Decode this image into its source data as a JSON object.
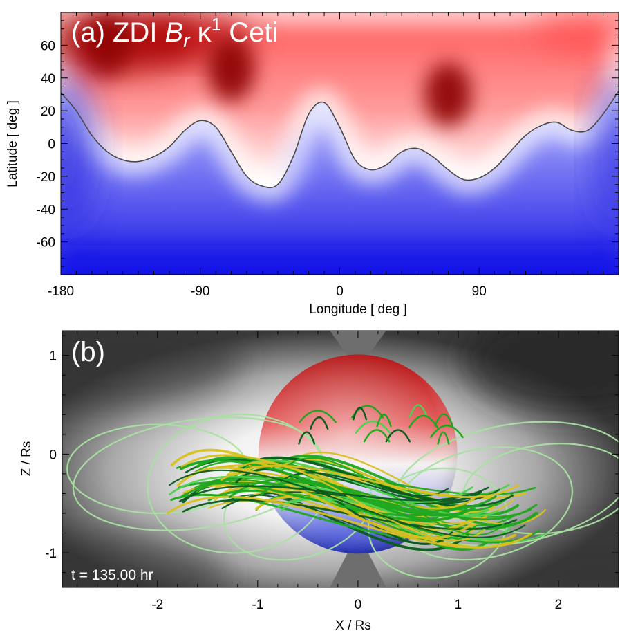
{
  "chart_data": [
    {
      "type": "heatmap",
      "panel": "(a)",
      "title_parts": {
        "prefix": "(a) ZDI ",
        "symbol": "B",
        "subscript": "r",
        "star": " κ",
        "superscript": "1",
        "suffix": " Ceti"
      },
      "xlabel": "Longitude  [ deg ]",
      "ylabel": "Latitude  [ deg ]",
      "xlim": [
        -180,
        180
      ],
      "ylim": [
        -80,
        80
      ],
      "xticks": [
        -180,
        -90,
        0,
        90
      ],
      "yticks": [
        60,
        40,
        20,
        0,
        -20,
        -40,
        -60
      ],
      "colormap": {
        "positive": "#b00000",
        "zero": "#ffffff",
        "negative": "#1010e0"
      },
      "contour_zero": {
        "lon": [
          -180,
          -170,
          -160,
          -150,
          -140,
          -130,
          -120,
          -110,
          -100,
          -90,
          -80,
          -70,
          -60,
          -50,
          -40,
          -30,
          -20,
          -10,
          0,
          10,
          20,
          30,
          40,
          50,
          60,
          70,
          80,
          90,
          100,
          110,
          120,
          130,
          140,
          150,
          160,
          170,
          180
        ],
        "lat": [
          31,
          20,
          5,
          -5,
          -10,
          -11,
          -8,
          -2,
          8,
          14,
          10,
          -5,
          -20,
          -26,
          -25,
          -8,
          18,
          25,
          10,
          -10,
          -16,
          -13,
          -5,
          -3,
          -8,
          -16,
          -22,
          -21,
          -15,
          -5,
          5,
          11,
          13,
          8,
          8,
          18,
          32
        ]
      },
      "field_features": [
        {
          "lon": -70,
          "lat": 45,
          "sign": "positive",
          "strength": 1.0
        },
        {
          "lon": 70,
          "lat": 30,
          "sign": "positive",
          "strength": 1.0
        },
        {
          "lon": -150,
          "lat": 60,
          "sign": "positive",
          "strength": 0.85
        },
        {
          "lon": -25,
          "lat": -10,
          "sign": "negative",
          "strength": 0.2
        }
      ]
    },
    {
      "type": "scatter",
      "panel": "(b)",
      "title": "(b)",
      "xlabel": "X / Rs",
      "ylabel": "Z / Rs",
      "xlim": [
        -2.95,
        2.6
      ],
      "ylim": [
        -1.35,
        1.25
      ],
      "xticks": [
        -2,
        -1,
        0,
        1,
        2
      ],
      "yticks": [
        1,
        0,
        -1
      ],
      "time_label": "t =  135.00 hr",
      "star": {
        "center": [
          0,
          0
        ],
        "radius": 1.0,
        "top_color": "#b21010",
        "bottom_color": "#1a2ad0"
      },
      "fieldline_colors": [
        "#a8e0a0",
        "#d8c020",
        "#1fa81f",
        "#0b5a20",
        "#50d050"
      ],
      "polar_cone_color": "#6e6e6e"
    }
  ]
}
